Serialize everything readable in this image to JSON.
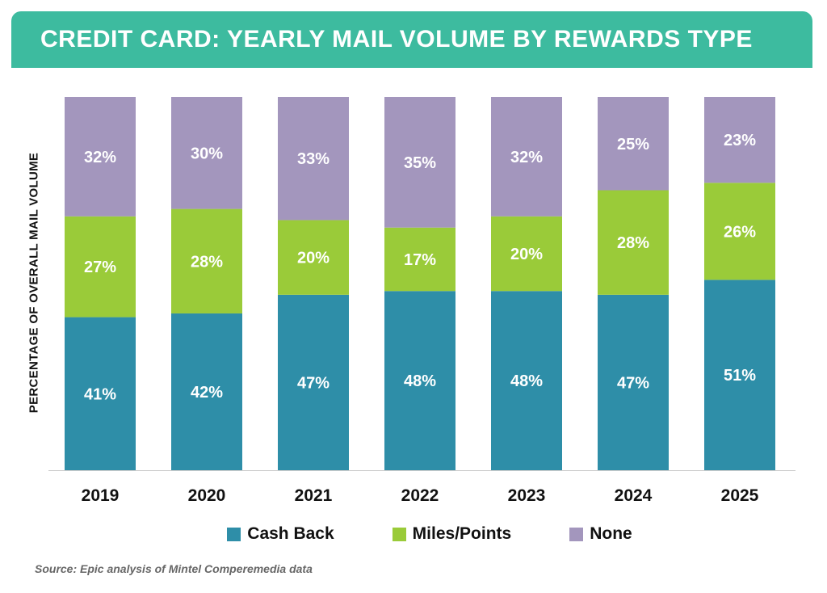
{
  "title": "CREDIT CARD: YEARLY MAIL VOLUME BY REWARDS TYPE",
  "colors": {
    "title_bar": "#3dbb9f",
    "cash_back": "#2e8ea8",
    "miles_points": "#9acb39",
    "none": "#a396bd",
    "label_text": "#ffffff",
    "axis_line": "#cccccc"
  },
  "source": "Source: Epic analysis of Mintel Comperemedia data",
  "chart_data": {
    "type": "bar",
    "stacked": true,
    "title": "CREDIT CARD: YEARLY MAIL VOLUME BY REWARDS TYPE",
    "xlabel": "",
    "ylabel": "PERCENTAGE OF OVERALL MAIL VOLUME",
    "categories": [
      "2019",
      "2020",
      "2021",
      "2022",
      "2023",
      "2024",
      "2025"
    ],
    "series": [
      {
        "name": "Cash Back",
        "color": "#2e8ea8",
        "values": [
          41,
          42,
          47,
          48,
          48,
          47,
          51
        ],
        "labels": [
          "41%",
          "42%",
          "47%",
          "48%",
          "48%",
          "47%",
          "51%"
        ]
      },
      {
        "name": "Miles/Points",
        "color": "#9acb39",
        "values": [
          27,
          28,
          20,
          17,
          20,
          28,
          26
        ],
        "labels": [
          "27%",
          "28%",
          "20%",
          "17%",
          "20%",
          "28%",
          "26%"
        ]
      },
      {
        "name": "None",
        "color": "#a396bd",
        "values": [
          32,
          30,
          33,
          35,
          32,
          25,
          23
        ],
        "labels": [
          "32%",
          "30%",
          "33%",
          "35%",
          "32%",
          "25%",
          "23%"
        ]
      }
    ],
    "legend": [
      "Cash Back",
      "Miles/Points",
      "None"
    ],
    "legend_position": "bottom",
    "grid": false
  }
}
